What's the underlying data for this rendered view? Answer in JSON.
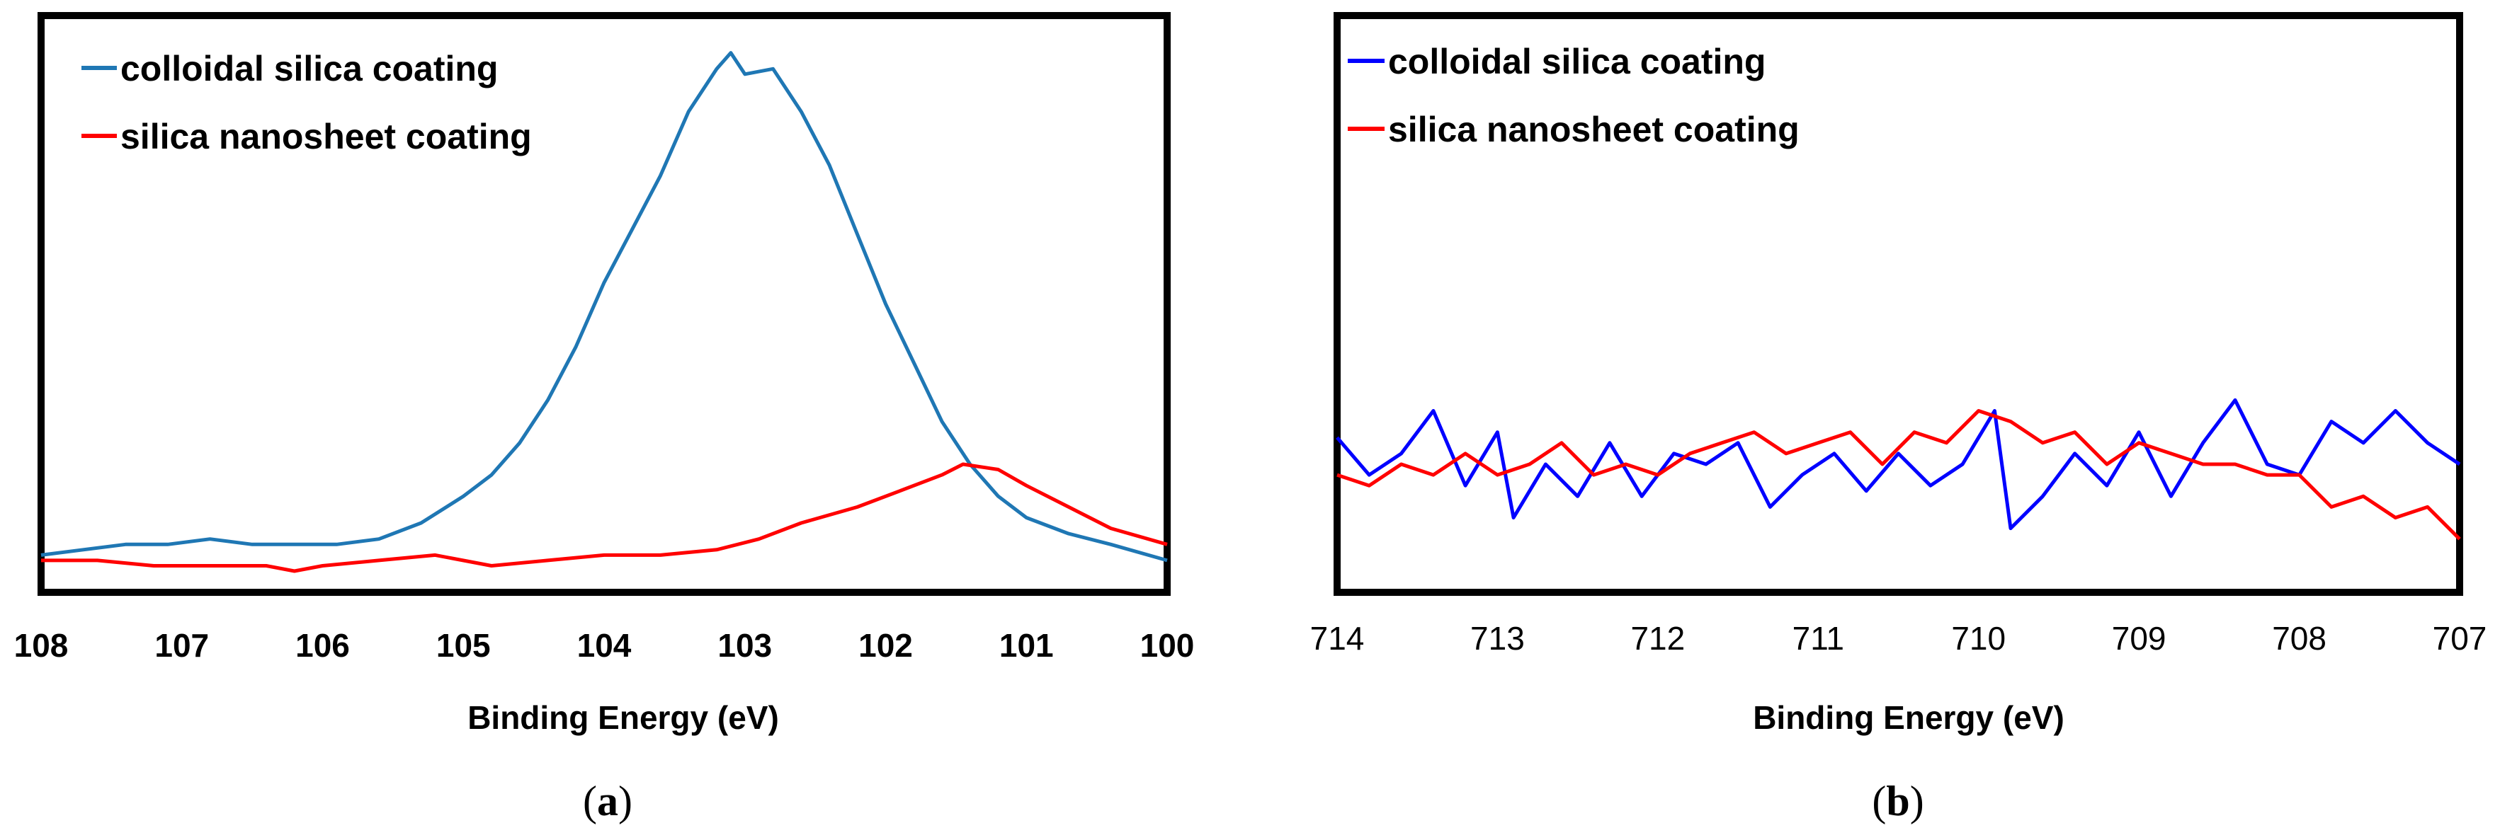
{
  "chart_data": [
    {
      "type": "line",
      "title": "",
      "xlabel": "Binding Energy (eV)",
      "ylabel": "",
      "caption": "a",
      "xlim": [
        108,
        100
      ],
      "ylim": [
        0,
        100
      ],
      "x_reversed": true,
      "tick_labels": [
        "108",
        "107",
        "106",
        "105",
        "104",
        "103",
        "102",
        "101",
        "100"
      ],
      "tick_values": [
        108,
        107,
        106,
        105,
        104,
        103,
        102,
        101,
        100
      ],
      "tick_weight": "bold",
      "legend_position": "top-left",
      "series": [
        {
          "name": "colloidal silica coating",
          "color": "#1f77b4",
          "x": [
            108,
            107.7,
            107.4,
            107.1,
            106.8,
            106.5,
            106.2,
            105.9,
            105.6,
            105.3,
            105.0,
            104.8,
            104.6,
            104.4,
            104.2,
            104.0,
            103.8,
            103.6,
            103.4,
            103.2,
            103.1,
            103.0,
            102.8,
            102.6,
            102.4,
            102.2,
            102.0,
            101.8,
            101.6,
            101.4,
            101.2,
            101.0,
            100.7,
            100.4,
            100.0
          ],
          "values": [
            3,
            4,
            5,
            5,
            6,
            5,
            5,
            5,
            6,
            9,
            14,
            18,
            24,
            32,
            42,
            54,
            64,
            74,
            86,
            94,
            97,
            93,
            94,
            86,
            76,
            63,
            50,
            39,
            28,
            20,
            14,
            10,
            7,
            5,
            2
          ]
        },
        {
          "name": "silica nanosheet coating",
          "color": "#ff0000",
          "x": [
            108,
            107.6,
            107.2,
            106.8,
            106.4,
            106.2,
            106.0,
            105.6,
            105.2,
            104.8,
            104.4,
            104.0,
            103.6,
            103.2,
            102.9,
            102.6,
            102.2,
            101.9,
            101.6,
            101.45,
            101.2,
            101.0,
            100.7,
            100.4,
            100.0
          ],
          "values": [
            2,
            2,
            1,
            1,
            1,
            0,
            1,
            2,
            3,
            1,
            2,
            3,
            3,
            4,
            6,
            9,
            12,
            15,
            18,
            20,
            19,
            16,
            12,
            8,
            5
          ]
        }
      ]
    },
    {
      "type": "line",
      "title": "",
      "xlabel": "Binding Energy (eV)",
      "ylabel": "",
      "caption": "b",
      "xlim": [
        714,
        707
      ],
      "ylim": [
        0,
        100
      ],
      "x_reversed": true,
      "tick_labels": [
        "714",
        "713",
        "712",
        "711",
        "710",
        "709",
        "708",
        "707"
      ],
      "tick_values": [
        714,
        713,
        712,
        711,
        710,
        709,
        708,
        707
      ],
      "tick_weight": "normal",
      "legend_position": "top-left",
      "series": [
        {
          "name": "colloidal silica coating",
          "color": "#0000ff",
          "x": [
            714,
            713.8,
            713.6,
            713.4,
            713.2,
            713.0,
            712.9,
            712.7,
            712.5,
            712.3,
            712.1,
            711.9,
            711.7,
            711.5,
            711.3,
            711.1,
            710.9,
            710.7,
            710.5,
            710.3,
            710.1,
            709.9,
            709.8,
            709.6,
            709.4,
            709.2,
            709.0,
            708.8,
            708.6,
            708.4,
            708.2,
            708.0,
            707.8,
            707.6,
            707.4,
            707.2,
            707.0
          ],
          "values": [
            25,
            18,
            22,
            30,
            16,
            26,
            10,
            20,
            14,
            24,
            14,
            22,
            20,
            24,
            12,
            18,
            22,
            15,
            22,
            16,
            20,
            30,
            8,
            14,
            22,
            16,
            26,
            14,
            24,
            32,
            20,
            18,
            28,
            24,
            30,
            24,
            20
          ]
        },
        {
          "name": "silica nanosheet coating",
          "color": "#ff0000",
          "x": [
            714,
            713.8,
            713.6,
            713.4,
            713.2,
            713.0,
            712.8,
            712.6,
            712.4,
            712.2,
            712.0,
            711.8,
            711.6,
            711.4,
            711.2,
            711.0,
            710.8,
            710.6,
            710.4,
            710.2,
            710.0,
            709.8,
            709.6,
            709.4,
            709.2,
            709.0,
            708.8,
            708.6,
            708.4,
            708.2,
            708.0,
            707.8,
            707.6,
            707.4,
            707.2,
            707.0
          ],
          "values": [
            18,
            16,
            20,
            18,
            22,
            18,
            20,
            24,
            18,
            20,
            18,
            22,
            24,
            26,
            22,
            24,
            26,
            20,
            26,
            24,
            30,
            28,
            24,
            26,
            20,
            24,
            22,
            20,
            20,
            18,
            18,
            12,
            14,
            10,
            12,
            6
          ]
        }
      ]
    }
  ]
}
